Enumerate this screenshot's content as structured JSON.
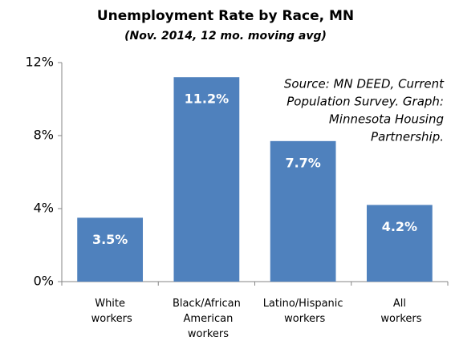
{
  "chart_data": {
    "type": "bar",
    "title": "Unemployment Rate by Race,  MN",
    "subtitle": "(Nov. 2014, 12 mo. moving avg)",
    "annotation": [
      "Source: MN DEED, Current",
      "Population Survey.  Graph:",
      "Minnesota Housing",
      "Partnership."
    ],
    "categories": [
      "White workers",
      "Black/African American workers",
      "Latino/Hispanic workers",
      "All workers"
    ],
    "values": [
      3.5,
      11.2,
      7.7,
      4.2
    ],
    "value_labels": [
      "3.5%",
      "11.2%",
      "7.7%",
      "4.2%"
    ],
    "color": "#4f81bd",
    "ylim": [
      0,
      12
    ],
    "yticks": [
      {
        "value": 0,
        "label": "0%"
      },
      {
        "value": 4,
        "label": "4%"
      },
      {
        "value": 8,
        "label": "8%"
      },
      {
        "value": 12,
        "label": "12%"
      }
    ],
    "grid": false
  }
}
